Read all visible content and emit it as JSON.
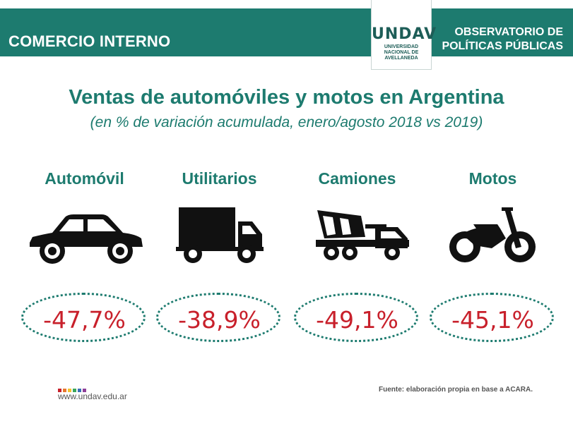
{
  "header": {
    "section": "COMERCIO INTERNO",
    "observatorio_line1": "OBSERVATORIO DE",
    "observatorio_line2": "POLÍTICAS PÚBLICAS",
    "logo": {
      "mark": "UNDAV",
      "line1": "UNIVERSIDAD",
      "line2": "NACIONAL DE",
      "line3": "AVELLANEDA"
    }
  },
  "title": "Ventas de automóviles y motos en Argentina",
  "subtitle": "(en % de variación acumulada, enero/agosto 2018 vs 2019)",
  "categories": [
    {
      "label": "Automóvil",
      "value": "-47,7%",
      "icon": "car-icon"
    },
    {
      "label": "Utilitarios",
      "value": "-38,9%",
      "icon": "truck-icon"
    },
    {
      "label": "Camiones",
      "value": "-49,1%",
      "icon": "cement-truck-icon"
    },
    {
      "label": "Motos",
      "value": "-45,1%",
      "icon": "motorcycle-icon"
    }
  ],
  "footer": {
    "url": "www.undav.edu.ar",
    "source": "Fuente: elaboración propia en base a ACARA.",
    "dot_colors": [
      "#c8202b",
      "#e7772e",
      "#f2c230",
      "#3aa65b",
      "#3b6fb6",
      "#8e3f98"
    ]
  },
  "colors": {
    "primary": "#1d7b6f",
    "value": "#c8202b"
  }
}
